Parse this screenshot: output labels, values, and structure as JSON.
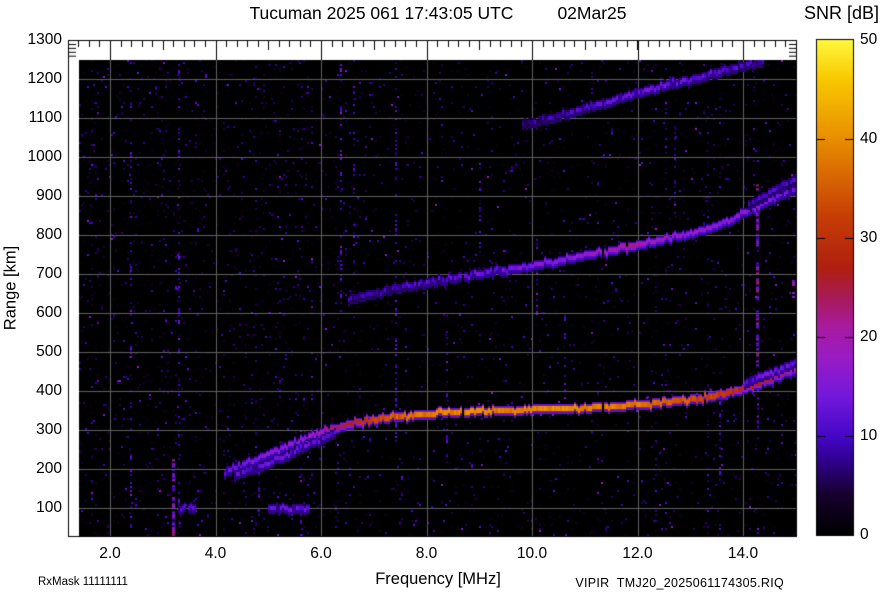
{
  "header": {
    "title": "Tucuman 2025 061 17:43:05 UTC",
    "date": "02Mar25"
  },
  "colorbar": {
    "label": "SNR [dB]",
    "ticks": [
      {
        "label": "50",
        "db": 50
      },
      {
        "label": "40",
        "db": 40
      },
      {
        "label": "30",
        "db": 30
      },
      {
        "label": "20",
        "db": 20
      },
      {
        "label": "10",
        "db": 10
      },
      {
        "label": "0",
        "db": 0
      }
    ],
    "stops": [
      {
        "db": 0,
        "color": "#000000"
      },
      {
        "db": 4,
        "color": "#16002c"
      },
      {
        "db": 8,
        "color": "#33009a"
      },
      {
        "db": 10,
        "color": "#4608c8"
      },
      {
        "db": 14,
        "color": "#7418dc"
      },
      {
        "db": 18,
        "color": "#9a1cc4"
      },
      {
        "db": 21,
        "color": "#a81aa0"
      },
      {
        "db": 24,
        "color": "#a81a58"
      },
      {
        "db": 27,
        "color": "#b02010"
      },
      {
        "db": 32,
        "color": "#c63c06"
      },
      {
        "db": 40,
        "color": "#e88e00"
      },
      {
        "db": 46,
        "color": "#f9c800"
      },
      {
        "db": 50,
        "color": "#fff83c"
      }
    ]
  },
  "axes": {
    "x": {
      "label": "Frequency [MHz]",
      "range_mhz": [
        1.4,
        15.0
      ],
      "ticks": [
        {
          "label": "2.0",
          "mhz": 2
        },
        {
          "label": "4.0",
          "mhz": 4
        },
        {
          "label": "6.0",
          "mhz": 6
        },
        {
          "label": "8.0",
          "mhz": 8
        },
        {
          "label": "10.0",
          "mhz": 10
        },
        {
          "label": "12.0",
          "mhz": 12
        },
        {
          "label": "14.0",
          "mhz": 14
        }
      ]
    },
    "y": {
      "label": "Range [km]",
      "range_km": [
        25,
        1300
      ],
      "ticks": [
        {
          "label": "1300",
          "km": 1300
        },
        {
          "label": "1200",
          "km": 1200
        },
        {
          "label": "1100",
          "km": 1100
        },
        {
          "label": "1000",
          "km": 1000
        },
        {
          "label": "900",
          "km": 900
        },
        {
          "label": "800",
          "km": 800
        },
        {
          "label": "700",
          "km": 700
        },
        {
          "label": "600",
          "km": 600
        },
        {
          "label": "500",
          "km": 500
        },
        {
          "label": "400",
          "km": 400
        },
        {
          "label": "300",
          "km": 300
        },
        {
          "label": "200",
          "km": 200
        },
        {
          "label": "100",
          "km": 100
        }
      ]
    }
  },
  "footer": {
    "rx_mask": "RxMask 11111111",
    "file": "VIPIR  TMJ20_2025061174305.RIQ"
  },
  "chart_data": {
    "type": "heatmap",
    "title": "Tucuman ionogram, day 061 2025, 17:43:05 UTC",
    "xlabel": "Frequency [MHz]",
    "ylabel": "Range [km]",
    "xlim_mhz": [
      1.4,
      15.0
    ],
    "ylim_km": [
      25,
      1300
    ],
    "snr_db_range": [
      0,
      50
    ],
    "series": [
      {
        "name": "F-region 1-hop echo",
        "points": [
          [
            4.15,
            192,
            13
          ],
          [
            4.4,
            205,
            14
          ],
          [
            4.7,
            222,
            15
          ],
          [
            5.0,
            240,
            16
          ],
          [
            5.3,
            258,
            16
          ],
          [
            5.6,
            274,
            17
          ],
          [
            6.0,
            295,
            20
          ],
          [
            6.4,
            312,
            25
          ],
          [
            6.8,
            324,
            30
          ],
          [
            7.2,
            332,
            34
          ],
          [
            7.6,
            338,
            36
          ],
          [
            8.0,
            342,
            38
          ],
          [
            8.5,
            347,
            39
          ],
          [
            9.0,
            350,
            39
          ],
          [
            9.5,
            352,
            38
          ],
          [
            10.0,
            354,
            39
          ],
          [
            10.5,
            356,
            40
          ],
          [
            11.0,
            358,
            39
          ],
          [
            11.5,
            362,
            38
          ],
          [
            12.0,
            366,
            38
          ],
          [
            12.5,
            372,
            36
          ],
          [
            13.0,
            380,
            34
          ],
          [
            13.4,
            388,
            32
          ],
          [
            13.8,
            398,
            30
          ],
          [
            14.1,
            410,
            28
          ],
          [
            14.4,
            424,
            26
          ],
          [
            14.7,
            440,
            23
          ],
          [
            14.9,
            450,
            21
          ],
          [
            15.05,
            460,
            19
          ]
        ]
      },
      {
        "name": "1-hop low split branch",
        "points": [
          [
            4.35,
            188,
            11
          ],
          [
            4.7,
            200,
            12
          ],
          [
            5.1,
            222,
            13
          ],
          [
            5.5,
            246,
            13
          ],
          [
            5.9,
            272,
            12
          ],
          [
            6.3,
            296,
            11
          ]
        ]
      },
      {
        "name": "1-hop upper split branch",
        "points": [
          [
            14.0,
            418,
            13
          ],
          [
            14.3,
            436,
            14
          ],
          [
            14.6,
            452,
            14
          ],
          [
            14.85,
            466,
            13
          ],
          [
            15.05,
            476,
            12
          ]
        ]
      },
      {
        "name": "F-region 2-hop echo",
        "points": [
          [
            6.5,
            635,
            8
          ],
          [
            7.0,
            652,
            9
          ],
          [
            7.5,
            666,
            10
          ],
          [
            8.0,
            678,
            11
          ],
          [
            8.5,
            690,
            12
          ],
          [
            9.0,
            701,
            13
          ],
          [
            9.5,
            712,
            14
          ],
          [
            10.0,
            723,
            15
          ],
          [
            10.5,
            735,
            16
          ],
          [
            11.0,
            748,
            17
          ],
          [
            11.5,
            761,
            19
          ],
          [
            11.9,
            772,
            24
          ],
          [
            12.1,
            778,
            20
          ],
          [
            12.5,
            790,
            18
          ],
          [
            13.0,
            806,
            17
          ],
          [
            13.4,
            820,
            17
          ],
          [
            13.8,
            842,
            16
          ],
          [
            14.1,
            862,
            16
          ],
          [
            14.4,
            884,
            15
          ],
          [
            14.7,
            903,
            14
          ],
          [
            15.0,
            918,
            13
          ]
        ]
      },
      {
        "name": "2-hop upper split branch",
        "points": [
          [
            14.1,
            880,
            9
          ],
          [
            14.4,
            902,
            10
          ],
          [
            14.7,
            925,
            10
          ],
          [
            15.0,
            945,
            9
          ]
        ]
      },
      {
        "name": "F-region 3-hop echo",
        "points": [
          [
            9.8,
            1082,
            8
          ],
          [
            10.2,
            1095,
            9
          ],
          [
            10.6,
            1110,
            10
          ],
          [
            11.0,
            1125,
            11
          ],
          [
            11.4,
            1142,
            12
          ],
          [
            11.8,
            1158,
            13
          ],
          [
            12.2,
            1172,
            14
          ],
          [
            12.6,
            1188,
            13
          ],
          [
            13.0,
            1200,
            12
          ],
          [
            13.4,
            1214,
            12
          ],
          [
            13.8,
            1228,
            11
          ],
          [
            14.1,
            1238,
            10
          ],
          [
            14.5,
            1248,
            9
          ],
          [
            14.9,
            1256,
            8
          ]
        ]
      },
      {
        "name": "low-range echo dash A",
        "points": [
          [
            3.3,
            100,
            11
          ],
          [
            3.62,
            100,
            12
          ]
        ]
      },
      {
        "name": "low-range echo dash B",
        "points": [
          [
            5.0,
            100,
            12
          ],
          [
            5.8,
            100,
            13
          ]
        ]
      }
    ],
    "rfi_stripes": [
      {
        "mhz": 3.2,
        "km": [
          25,
          230
        ],
        "strength": 3.0
      },
      {
        "mhz": 3.28,
        "km": [
          25,
          1250
        ],
        "strength": 1.1
      },
      {
        "mhz": 2.38,
        "km": [
          25,
          1250
        ],
        "strength": 1.0
      },
      {
        "mhz": 4.8,
        "km": [
          25,
          260
        ],
        "strength": 1.4
      },
      {
        "mhz": 5.6,
        "km": [
          25,
          300
        ],
        "strength": 1.3
      },
      {
        "mhz": 6.36,
        "km": [
          600,
          1250
        ],
        "strength": 1.4
      },
      {
        "mhz": 6.6,
        "km": [
          700,
          1250
        ],
        "strength": 1.1
      },
      {
        "mhz": 7.4,
        "km": [
          270,
          1250
        ],
        "strength": 1.3
      },
      {
        "mhz": 8.37,
        "km": [
          200,
          610
        ],
        "strength": 1.3
      },
      {
        "mhz": 9.0,
        "km": [
          700,
          1000
        ],
        "strength": 1.1
      },
      {
        "mhz": 10.07,
        "km": [
          600,
          790
        ],
        "strength": 1.7
      },
      {
        "mhz": 10.6,
        "km": [
          350,
          600
        ],
        "strength": 1.0
      },
      {
        "mhz": 11.5,
        "km": [
          1050,
          1150
        ],
        "strength": 1.1
      },
      {
        "mhz": 12.7,
        "km": [
          820,
          1080
        ],
        "strength": 1.1
      },
      {
        "mhz": 13.55,
        "km": [
          170,
          400
        ],
        "strength": 1.3
      },
      {
        "mhz": 14.27,
        "km": [
          450,
          940
        ],
        "strength": 2.8
      },
      {
        "mhz": 14.27,
        "km": [
          250,
          450
        ],
        "strength": 1.6
      },
      {
        "mhz": 14.95,
        "km": [
          640,
          690
        ],
        "strength": 2.2
      }
    ],
    "noise": {
      "seed": 7,
      "description": "sparse purple speckle noise on black, denser below ~6.8 MHz"
    }
  }
}
